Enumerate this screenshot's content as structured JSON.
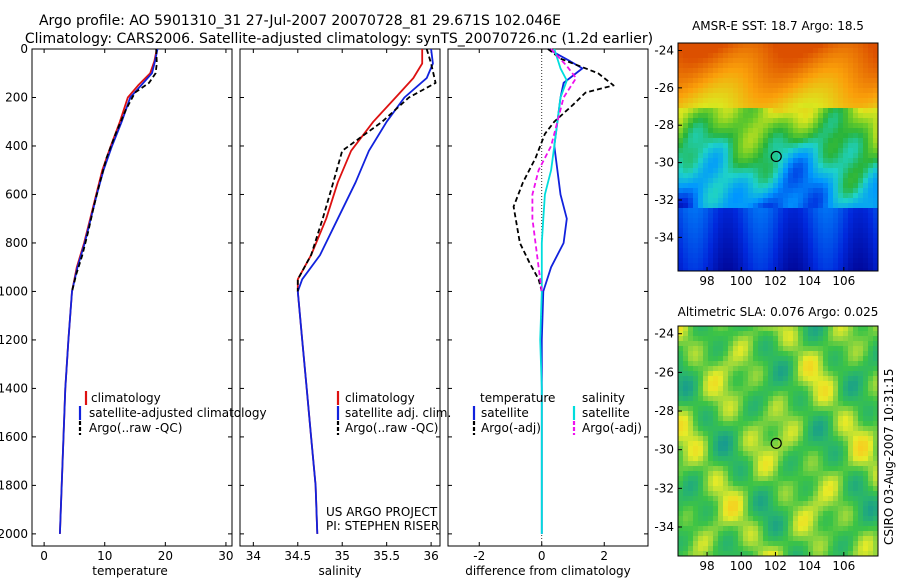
{
  "header": {
    "line1": "Argo profile: AO 5901310_31 27-Jul-2007 20070728_81 29.671S 102.046E",
    "line2": "Climatology: CARS2006. Satellite-adjusted climatology: synTS_20070726.nc (1.2d earlier)"
  },
  "credits": {
    "project": "US ARGO PROJECT",
    "pi": "PI: STEPHEN RISER",
    "stamp": "CSIRO 03-Aug-2007 10:31:15"
  },
  "colors": {
    "climatology": "#dd1111",
    "satellite": "#1122dd",
    "argo": "#000000",
    "satellite_diff": "#00dddd",
    "argo_diff": "#ee11ee"
  },
  "chart_data": [
    {
      "type": "line",
      "panel": "temperature",
      "xlabel": "temperature",
      "ylabel": "",
      "xlim": [
        -2,
        31
      ],
      "ylim": [
        2050,
        0
      ],
      "xticks": [
        "0",
        "10",
        "20",
        "30"
      ],
      "yticks": [
        "0",
        "200",
        "400",
        "600",
        "800",
        "1000",
        "1200",
        "1400",
        "1600",
        "1800",
        "2000"
      ],
      "legend": {
        "position": "lower-right",
        "entries": [
          "climatology",
          "satellite-adjusted climatology",
          "Argo(..raw -QC)"
        ]
      },
      "series": [
        {
          "name": "climatology",
          "points": [
            [
              18.6,
              0
            ],
            [
              18.2,
              50
            ],
            [
              17.5,
              100
            ],
            [
              15.5,
              150
            ],
            [
              13.8,
              200
            ],
            [
              12.5,
              300
            ],
            [
              11.0,
              400
            ],
            [
              9.6,
              500
            ],
            [
              8.6,
              600
            ],
            [
              7.6,
              700
            ],
            [
              6.6,
              800
            ],
            [
              5.4,
              900
            ],
            [
              4.6,
              1000
            ],
            [
              4.0,
              1200
            ],
            [
              3.5,
              1400
            ],
            [
              3.2,
              1600
            ],
            [
              2.9,
              1800
            ],
            [
              2.6,
              2000
            ]
          ]
        },
        {
          "name": "satellite-adjusted climatology",
          "points": [
            [
              18.7,
              0
            ],
            [
              18.3,
              50
            ],
            [
              17.8,
              100
            ],
            [
              16.0,
              150
            ],
            [
              14.2,
              200
            ],
            [
              12.8,
              300
            ],
            [
              11.2,
              400
            ],
            [
              9.8,
              500
            ],
            [
              8.7,
              600
            ],
            [
              7.7,
              700
            ],
            [
              6.7,
              800
            ],
            [
              5.5,
              900
            ],
            [
              4.6,
              1000
            ],
            [
              4.0,
              1200
            ],
            [
              3.5,
              1400
            ],
            [
              3.2,
              1600
            ],
            [
              2.9,
              1800
            ],
            [
              2.6,
              2000
            ]
          ]
        },
        {
          "name": "Argo(..raw -QC)",
          "points": [
            [
              18.5,
              0
            ],
            [
              18.6,
              60
            ],
            [
              18.4,
              100
            ],
            [
              17.3,
              140
            ],
            [
              15.0,
              180
            ],
            [
              13.5,
              250
            ],
            [
              11.8,
              350
            ],
            [
              10.3,
              450
            ],
            [
              9.2,
              550
            ],
            [
              8.2,
              650
            ],
            [
              7.3,
              750
            ],
            [
              6.3,
              850
            ],
            [
              5.3,
              930
            ],
            [
              4.6,
              1000
            ]
          ]
        }
      ]
    },
    {
      "type": "line",
      "panel": "salinity",
      "xlabel": "salinity",
      "ylabel": "",
      "xlim": [
        33.85,
        36.1
      ],
      "ylim": [
        2050,
        0
      ],
      "xticks": [
        "34",
        "34.5",
        "35",
        "35.5",
        "36"
      ],
      "yticks": [],
      "legend": {
        "position": "lower-right",
        "entries": [
          "climatology",
          "satellite adj. clim.",
          "Argo(..raw -QC)"
        ]
      },
      "series": [
        {
          "name": "climatology",
          "points": [
            [
              35.9,
              0
            ],
            [
              35.9,
              60
            ],
            [
              35.8,
              120
            ],
            [
              35.6,
              200
            ],
            [
              35.35,
              300
            ],
            [
              35.1,
              420
            ],
            [
              34.95,
              550
            ],
            [
              34.82,
              700
            ],
            [
              34.65,
              850
            ],
            [
              34.5,
              950
            ],
            [
              34.5,
              1000
            ],
            [
              34.55,
              1200
            ],
            [
              34.6,
              1400
            ],
            [
              34.65,
              1600
            ],
            [
              34.7,
              1800
            ],
            [
              34.72,
              2000
            ]
          ]
        },
        {
          "name": "satellite adj. clim.",
          "points": [
            [
              36.0,
              0
            ],
            [
              36.02,
              60
            ],
            [
              35.95,
              120
            ],
            [
              35.7,
              200
            ],
            [
              35.5,
              300
            ],
            [
              35.3,
              420
            ],
            [
              35.15,
              550
            ],
            [
              34.95,
              700
            ],
            [
              34.75,
              850
            ],
            [
              34.55,
              950
            ],
            [
              34.5,
              1000
            ],
            [
              34.55,
              1200
            ],
            [
              34.6,
              1400
            ],
            [
              34.65,
              1600
            ],
            [
              34.7,
              1800
            ],
            [
              34.72,
              2000
            ]
          ]
        },
        {
          "name": "Argo(..raw -QC)",
          "points": [
            [
              35.95,
              0
            ],
            [
              36.0,
              60
            ],
            [
              36.05,
              140
            ],
            [
              35.75,
              200
            ],
            [
              35.45,
              300
            ],
            [
              35.0,
              420
            ],
            [
              34.9,
              550
            ],
            [
              34.78,
              700
            ],
            [
              34.65,
              850
            ],
            [
              34.5,
              950
            ],
            [
              34.5,
              1000
            ]
          ]
        }
      ]
    },
    {
      "type": "line",
      "panel": "difference",
      "xlabel": "difference from climatology",
      "ylabel": "",
      "xlim": [
        -3,
        3.4
      ],
      "ylim": [
        2050,
        0
      ],
      "xticks": [
        "-2",
        "0",
        "2"
      ],
      "yticks": [],
      "legend": {
        "position": "lower-center",
        "groups": [
          {
            "title": "temperature",
            "entries": [
              "satellite",
              "Argo(-adj)"
            ]
          },
          {
            "title": "salinity",
            "entries": [
              "satellite",
              "Argo(-adj)"
            ]
          }
        ]
      },
      "series": [
        {
          "name": "temperature satellite",
          "points": [
            [
              0.2,
              0
            ],
            [
              0.9,
              50
            ],
            [
              1.3,
              80
            ],
            [
              0.7,
              140
            ],
            [
              0.6,
              200
            ],
            [
              0.5,
              300
            ],
            [
              0.4,
              400
            ],
            [
              0.5,
              500
            ],
            [
              0.6,
              600
            ],
            [
              0.8,
              700
            ],
            [
              0.7,
              800
            ],
            [
              0.3,
              900
            ],
            [
              0.05,
              1000
            ],
            [
              0,
              1200
            ],
            [
              0,
              1400
            ],
            [
              0,
              1600
            ],
            [
              0,
              1800
            ],
            [
              0,
              2000
            ]
          ]
        },
        {
          "name": "temperature Argo(-adj)",
          "points": [
            [
              0.2,
              0
            ],
            [
              0.6,
              40
            ],
            [
              1.8,
              100
            ],
            [
              2.3,
              150
            ],
            [
              1.4,
              180
            ],
            [
              1.0,
              230
            ],
            [
              0.4,
              300
            ],
            [
              0.1,
              350
            ],
            [
              -0.2,
              450
            ],
            [
              -0.6,
              550
            ],
            [
              -0.9,
              650
            ],
            [
              -0.7,
              800
            ],
            [
              -0.4,
              880
            ],
            [
              -0.1,
              950
            ],
            [
              0,
              1000
            ]
          ]
        },
        {
          "name": "salinity satellite",
          "points": [
            [
              0.4,
              0
            ],
            [
              0.6,
              80
            ],
            [
              0.8,
              130
            ],
            [
              0.6,
              200
            ],
            [
              0.5,
              300
            ],
            [
              0.4,
              400
            ],
            [
              0.3,
              500
            ],
            [
              0.1,
              600
            ],
            [
              0.05,
              700
            ],
            [
              0,
              800
            ],
            [
              0,
              1000
            ],
            [
              -0.05,
              1200
            ],
            [
              0,
              1400
            ],
            [
              0,
              1600
            ],
            [
              0,
              1800
            ],
            [
              0,
              2000
            ]
          ]
        },
        {
          "name": "salinity Argo(-adj)",
          "points": [
            [
              0.3,
              0
            ],
            [
              0.8,
              70
            ],
            [
              1.1,
              120
            ],
            [
              0.7,
              200
            ],
            [
              0.5,
              300
            ],
            [
              0.3,
              400
            ],
            [
              -0.1,
              500
            ],
            [
              -0.3,
              600
            ],
            [
              -0.3,
              700
            ],
            [
              -0.2,
              800
            ],
            [
              -0.1,
              900
            ],
            [
              0,
              1000
            ]
          ]
        }
      ]
    },
    {
      "type": "heatmap",
      "panel": "sst-map",
      "title": "AMSR-E SST: 18.7 Argo: 18.5",
      "xlim": [
        96.3,
        108
      ],
      "ylim": [
        -35.8,
        -23.6
      ],
      "xticks": [
        "98",
        "100",
        "102",
        "104",
        "106"
      ],
      "yticks": [
        "-24",
        "-26",
        "-28",
        "-30",
        "-32",
        "-34"
      ],
      "marker": {
        "lon": 102.046,
        "lat": -29.671
      }
    },
    {
      "type": "heatmap",
      "panel": "sla-map",
      "title": "Altimetric SLA: 0.076 Argo: 0.025",
      "xlim": [
        96.3,
        108
      ],
      "ylim": [
        -35.5,
        -23.6
      ],
      "xticks": [
        "98",
        "100",
        "102",
        "104",
        "106"
      ],
      "yticks": [
        "-24",
        "-26",
        "-28",
        "-30",
        "-32",
        "-34"
      ],
      "marker": {
        "lon": 102.046,
        "lat": -29.671
      }
    }
  ]
}
